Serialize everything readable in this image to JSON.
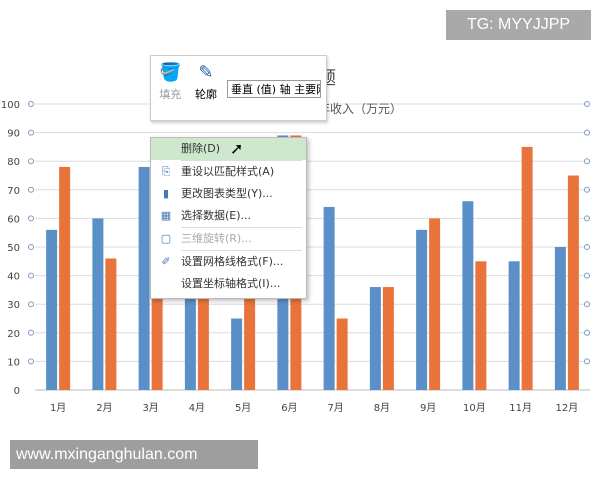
{
  "badge": "TG: MYYJJPP",
  "watermark": "www.mxinganghulan.com",
  "chart_title_visible": "题",
  "chart_subtitle_visible": "年收入（万元）",
  "toolbar": {
    "fill_label": "填充",
    "outline_label": "轮廓",
    "element_select": "垂直 (值) 轴 主要网格线"
  },
  "context_menu": {
    "items": [
      {
        "label": "删除(D)",
        "icon": "",
        "disabled": false,
        "highlighted": true
      },
      {
        "label": "重设以匹配样式(A)",
        "icon": "reset-style-icon",
        "disabled": false
      },
      {
        "label": "更改图表类型(Y)...",
        "icon": "chart-type-icon",
        "disabled": false
      },
      {
        "label": "选择数据(E)...",
        "icon": "select-data-icon",
        "disabled": false
      },
      {
        "label": "三维旋转(R)...",
        "icon": "3d-rotate-icon",
        "disabled": true
      },
      {
        "label": "设置网格线格式(F)...",
        "icon": "format-gridlines-icon",
        "disabled": false
      },
      {
        "label": "设置坐标轴格式(I)...",
        "icon": "",
        "disabled": false
      }
    ]
  },
  "chart_data": {
    "type": "bar",
    "categories": [
      "1月",
      "2月",
      "3月",
      "4月",
      "5月",
      "6月",
      "7月",
      "8月",
      "9月",
      "10月",
      "11月",
      "12月"
    ],
    "series": [
      {
        "values": [
          56,
          60,
          78,
          48,
          25,
          89,
          64,
          36,
          56,
          66,
          45,
          50
        ],
        "color": "#5b8fc7"
      },
      {
        "values": [
          78,
          46,
          50,
          40,
          40,
          89,
          25,
          36,
          60,
          45,
          85,
          75
        ],
        "color": "#e8743b"
      }
    ],
    "ylim": [
      0,
      100
    ],
    "yticks": [
      0,
      10,
      20,
      30,
      40,
      50,
      60,
      70,
      80,
      90,
      100
    ],
    "grid": true
  }
}
